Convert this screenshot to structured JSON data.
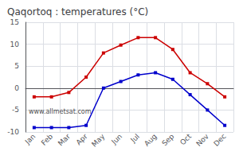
{
  "chart_data": {
    "type": "line",
    "title": "Qaqortoq : temperatures (°C)",
    "categories": [
      "Jan",
      "Feb",
      "Mar",
      "Apr",
      "May",
      "Jun",
      "Jul",
      "Aug",
      "Sep",
      "Oct",
      "Nov",
      "Dec"
    ],
    "series": [
      {
        "color": "#cc0000",
        "marker": "square",
        "values": [
          -2.0,
          -2.0,
          -1.0,
          2.5,
          8.0,
          9.8,
          11.5,
          11.5,
          8.8,
          3.5,
          1.0,
          -2.0
        ]
      },
      {
        "color": "#0000cc",
        "marker": "square",
        "values": [
          -9.0,
          -9.0,
          -9.0,
          -8.5,
          0.0,
          1.5,
          3.0,
          3.5,
          2.0,
          -1.5,
          -5.0,
          -8.5
        ]
      }
    ],
    "ylim": [
      -10,
      15
    ],
    "yticks": [
      -10,
      -5,
      0,
      5,
      10,
      15
    ],
    "grid": true,
    "annotation": "www.allmetsat.com"
  }
}
